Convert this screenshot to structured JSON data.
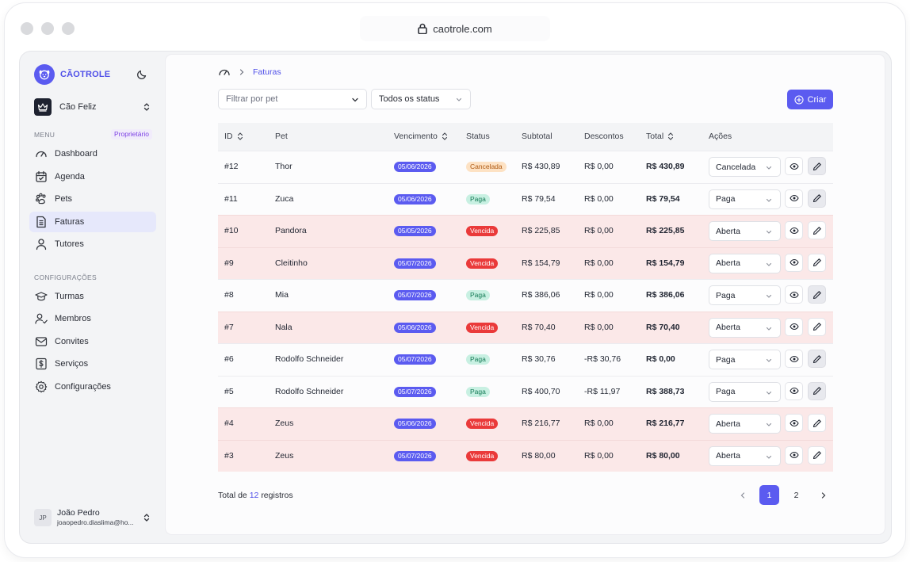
{
  "browser": {
    "url": "caotrole.com"
  },
  "app": {
    "name": "CÃOTROLE"
  },
  "org": {
    "name": "Cão Feliz"
  },
  "sidebar": {
    "menu_label": "MENU",
    "role_badge": "Proprietário",
    "items": [
      {
        "label": "Dashboard",
        "icon": "gauge-icon"
      },
      {
        "label": "Agenda",
        "icon": "calendar-check-icon"
      },
      {
        "label": "Pets",
        "icon": "paw-icon"
      },
      {
        "label": "Faturas",
        "icon": "invoice-icon",
        "active": true
      },
      {
        "label": "Tutores",
        "icon": "user-icon"
      }
    ],
    "config_label": "CONFIGURAÇÕES",
    "config_items": [
      {
        "label": "Turmas",
        "icon": "graduation-cap-icon"
      },
      {
        "label": "Membros",
        "icon": "user-check-icon"
      },
      {
        "label": "Convites",
        "icon": "mail-icon"
      },
      {
        "label": "Serviços",
        "icon": "dollar-square-icon"
      },
      {
        "label": "Configurações",
        "icon": "gear-icon"
      }
    ]
  },
  "user": {
    "initials": "JP",
    "name": "João Pedro",
    "email": "joaopedro.diaslima@ho..."
  },
  "breadcrumb": {
    "current": "Faturas"
  },
  "filters": {
    "pet_placeholder": "Filtrar por pet",
    "status_value": "Todos os status"
  },
  "create_label": "Criar",
  "table": {
    "headers": {
      "id": "ID",
      "pet": "Pet",
      "due": "Vencimento",
      "status": "Status",
      "subtotal": "Subtotal",
      "discounts": "Descontos",
      "total": "Total",
      "actions": "Ações"
    },
    "rows": [
      {
        "id": "#12",
        "pet": "Thor",
        "due": "05/06/2026",
        "status": "Cancelada",
        "subtotal": "R$ 430,89",
        "discount": "R$ 0,00",
        "total": "R$ 430,89",
        "select": "Cancelada"
      },
      {
        "id": "#11",
        "pet": "Zuca",
        "due": "05/06/2026",
        "status": "Paga",
        "subtotal": "R$ 79,54",
        "discount": "R$ 0,00",
        "total": "R$ 79,54",
        "select": "Paga"
      },
      {
        "id": "#10",
        "pet": "Pandora",
        "due": "05/05/2026",
        "status": "Vencida",
        "subtotal": "R$ 225,85",
        "discount": "R$ 0,00",
        "total": "R$ 225,85",
        "select": "Aberta"
      },
      {
        "id": "#9",
        "pet": "Cleitinho",
        "due": "05/07/2026",
        "status": "Vencida",
        "subtotal": "R$ 154,79",
        "discount": "R$ 0,00",
        "total": "R$ 154,79",
        "select": "Aberta"
      },
      {
        "id": "#8",
        "pet": "Mia",
        "due": "05/07/2026",
        "status": "Paga",
        "subtotal": "R$ 386,06",
        "discount": "R$ 0,00",
        "total": "R$ 386,06",
        "select": "Paga"
      },
      {
        "id": "#7",
        "pet": "Nala",
        "due": "05/06/2026",
        "status": "Vencida",
        "subtotal": "R$ 70,40",
        "discount": "R$ 0,00",
        "total": "R$ 70,40",
        "select": "Aberta"
      },
      {
        "id": "#6",
        "pet": "Rodolfo Schneider",
        "due": "05/07/2026",
        "status": "Paga",
        "subtotal": "R$ 30,76",
        "discount": "-R$ 30,76",
        "total": "R$ 0,00",
        "select": "Paga"
      },
      {
        "id": "#5",
        "pet": "Rodolfo Schneider",
        "due": "05/07/2026",
        "status": "Paga",
        "subtotal": "R$ 400,70",
        "discount": "-R$ 11,97",
        "total": "R$ 388,73",
        "select": "Paga"
      },
      {
        "id": "#4",
        "pet": "Zeus",
        "due": "05/06/2026",
        "status": "Vencida",
        "subtotal": "R$ 216,77",
        "discount": "R$ 0,00",
        "total": "R$ 216,77",
        "select": "Aberta"
      },
      {
        "id": "#3",
        "pet": "Zeus",
        "due": "05/07/2026",
        "status": "Vencida",
        "subtotal": "R$ 80,00",
        "discount": "R$ 0,00",
        "total": "R$ 80,00",
        "select": "Aberta"
      }
    ]
  },
  "footer": {
    "total_prefix": "Total de",
    "total_count": "12",
    "total_suffix": "registros"
  },
  "pagination": {
    "pages": [
      "1",
      "2"
    ],
    "current": "1"
  },
  "colors": {
    "accent": "#5b5bf0",
    "overdue_row": "#fbe8e8",
    "status_paid": "#c8f0e2",
    "status_cancelled": "#fde2c4",
    "status_overdue": "#ea3a3a"
  }
}
